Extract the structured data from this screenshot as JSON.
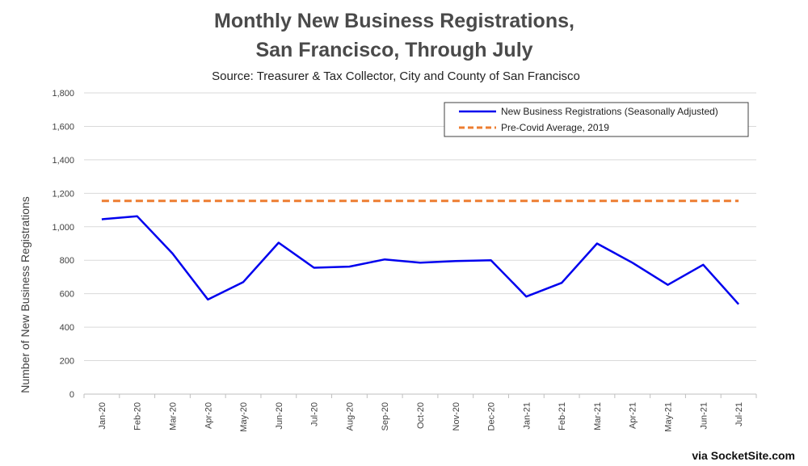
{
  "chart_data": {
    "type": "line",
    "title_line1": "Monthly New Business Registrations,",
    "title_line2": "San Francisco, Through July",
    "subtitle": "Source: Treasurer & Tax Collector, City and County of San Francisco",
    "xlabel": "",
    "ylabel": "Number of New Business Registrations",
    "ylim": [
      0,
      1800
    ],
    "yticks": [
      "0",
      "200",
      "400",
      "600",
      "800",
      "1,000",
      "1,200",
      "1,400",
      "1,600",
      "1,800"
    ],
    "grid": true,
    "legend_position": "top-right",
    "categories": [
      "Jan-20",
      "Feb-20",
      "Mar-20",
      "Apr-20",
      "May-20",
      "Jun-20",
      "Jul-20",
      "Aug-20",
      "Sep-20",
      "Oct-20",
      "Nov-20",
      "Dec-20",
      "Jan-21",
      "Feb-21",
      "Mar-21",
      "Apr-21",
      "May-21",
      "Jun-21",
      "Jul-21"
    ],
    "series": [
      {
        "name": "New Business Registrations (Seasonally Adjusted)",
        "color": "#0000ee",
        "style": "solid",
        "values": [
          1045,
          1063,
          840,
          565,
          670,
          905,
          755,
          762,
          805,
          785,
          795,
          800,
          583,
          665,
          900,
          785,
          653,
          773,
          537
        ]
      },
      {
        "name": "Pre-Covid Average, 2019",
        "color": "#ed7d31",
        "style": "dashed",
        "values": [
          1155,
          1155,
          1155,
          1155,
          1155,
          1155,
          1155,
          1155,
          1155,
          1155,
          1155,
          1155,
          1155,
          1155,
          1155,
          1155,
          1155,
          1155,
          1155
        ]
      }
    ]
  },
  "watermark": "via SocketSite.com"
}
